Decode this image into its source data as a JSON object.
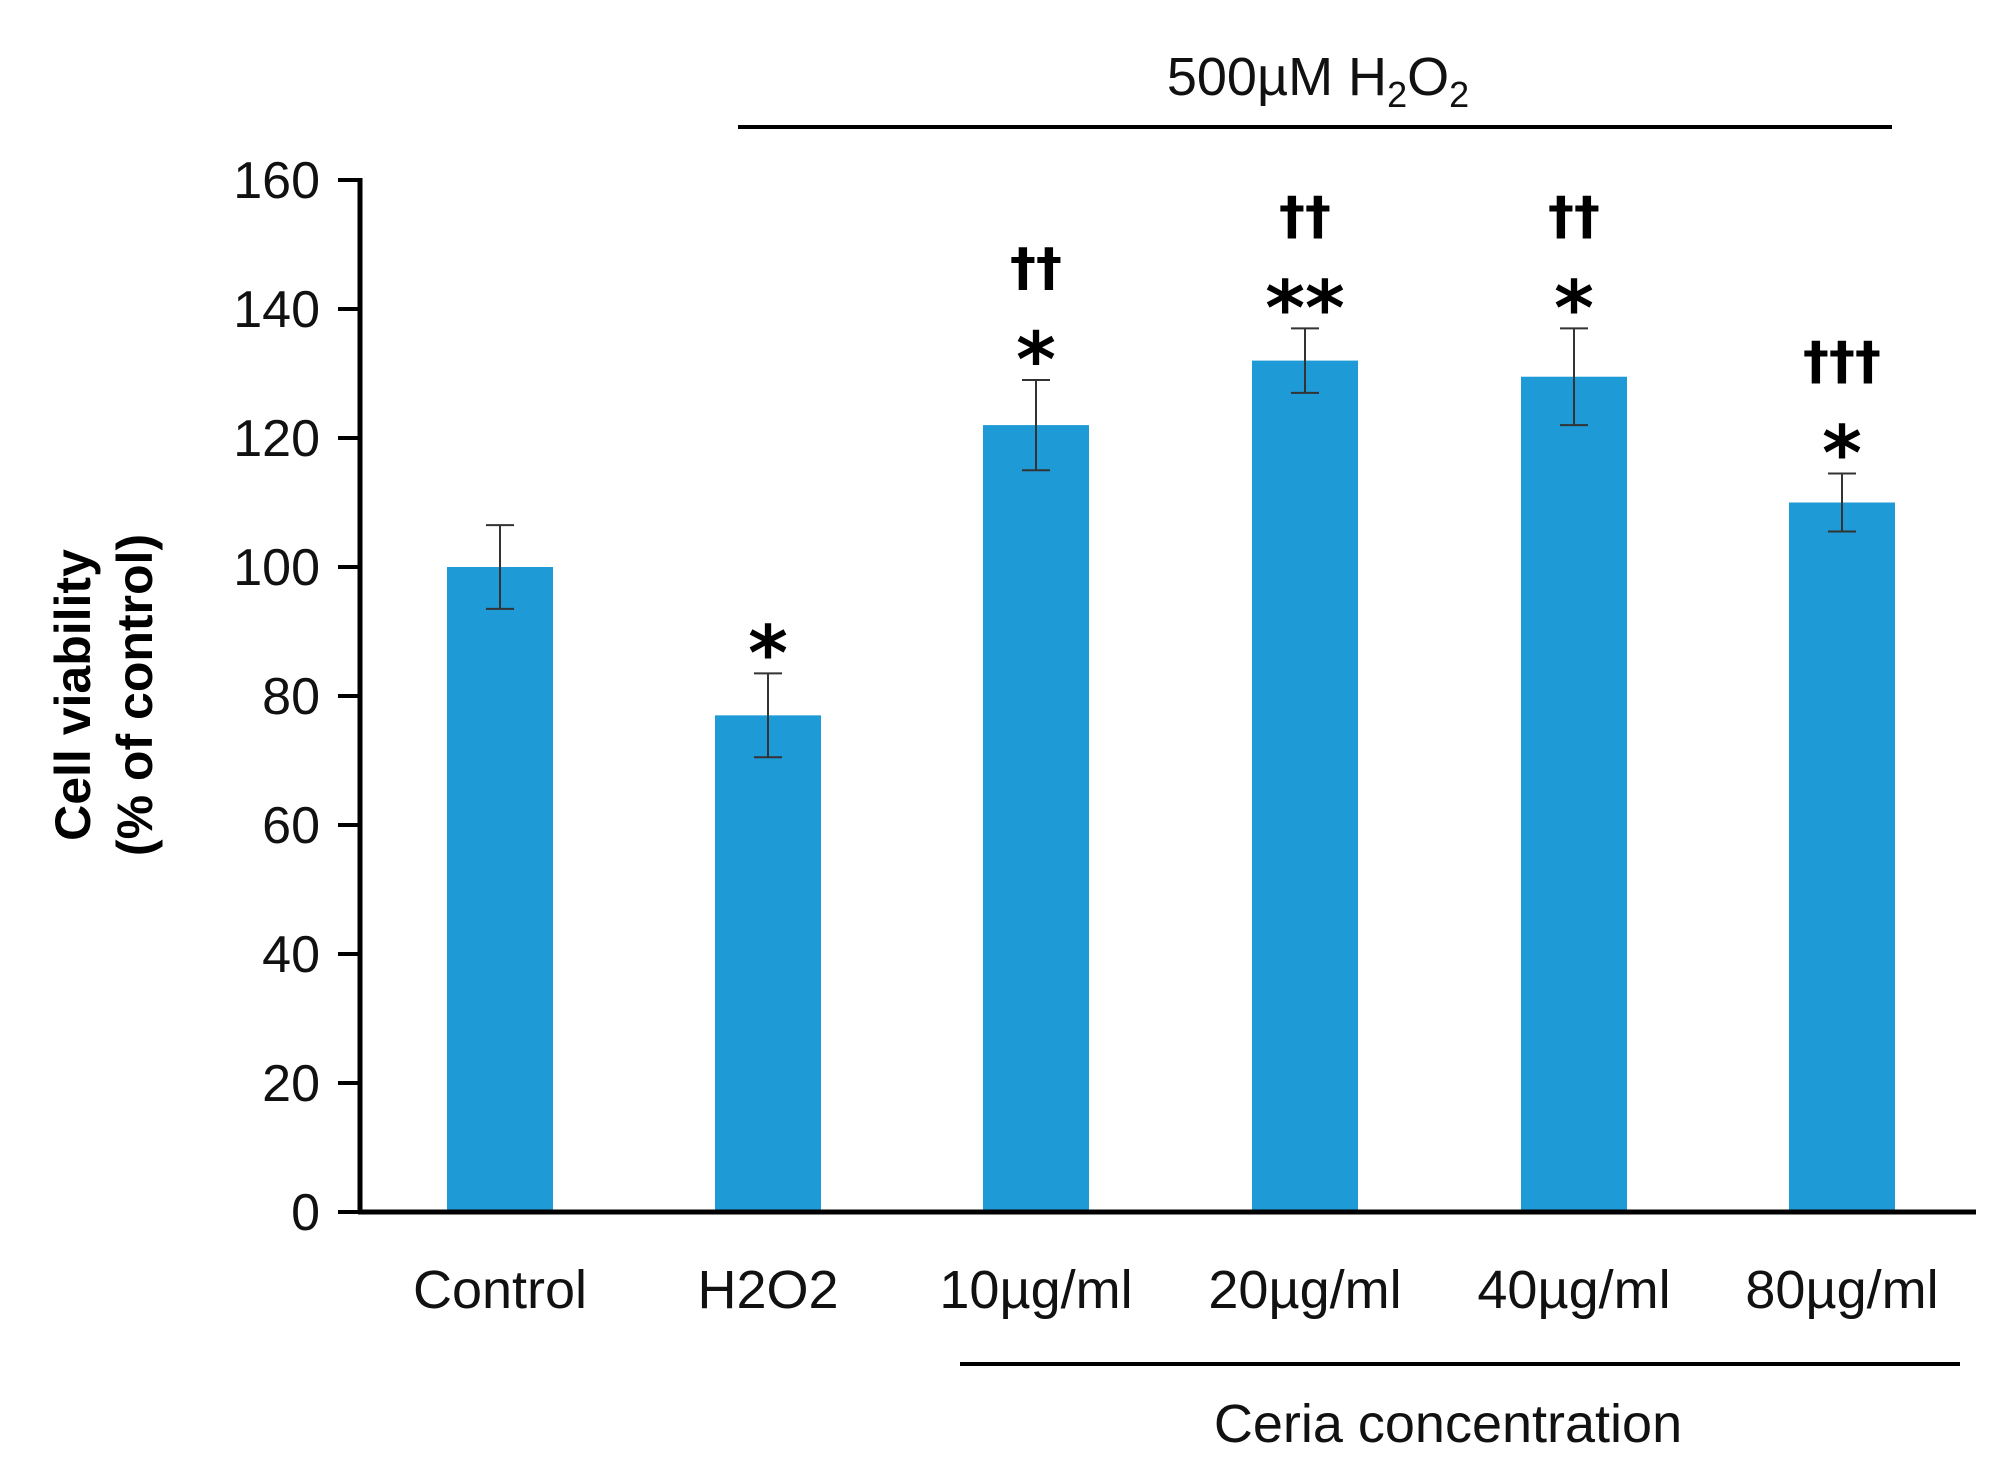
{
  "chart_data": {
    "type": "bar",
    "categories": [
      "Control",
      "H2O2",
      "10µg/ml",
      "20µg/ml",
      "40µg/ml",
      "80µg/ml"
    ],
    "values": [
      100,
      77,
      122,
      132,
      129.5,
      110
    ],
    "errors": [
      6.5,
      6.5,
      7,
      5,
      7.5,
      4.5
    ],
    "significance_star": [
      "",
      "*",
      "*",
      "**",
      "*",
      "*"
    ],
    "significance_dagger": [
      "",
      "",
      "††",
      "††",
      "††",
      "†††"
    ],
    "ylabel_line1": "Cell viability",
    "ylabel_line2": "(% of control)",
    "ylim": [
      0,
      160
    ],
    "yticks": [
      0,
      20,
      40,
      60,
      80,
      100,
      120,
      140,
      160
    ],
    "top_group_label_prefix": "500µM H",
    "top_group_label_sub1": "2",
    "top_group_label_mid": "O",
    "top_group_label_sub2": "2",
    "bottom_group_label": "Ceria concentration",
    "bar_color": "#1e9ad6"
  }
}
